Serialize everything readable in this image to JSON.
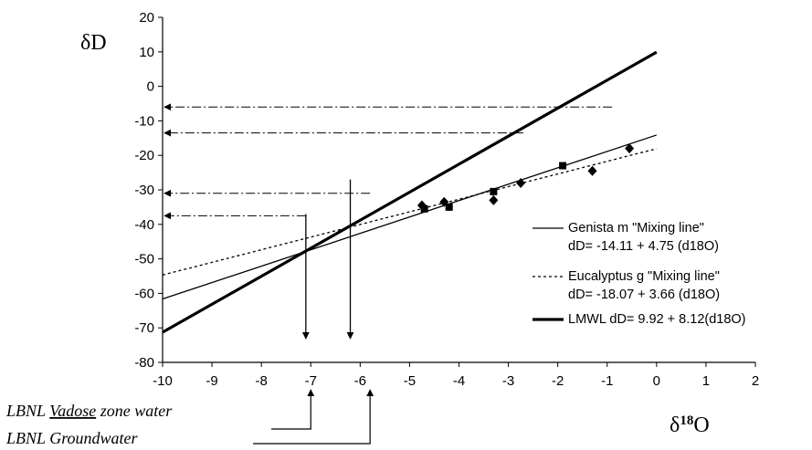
{
  "chart_data": {
    "type": "line",
    "title": "",
    "ylabel": "δD",
    "xlabel_main": "δ",
    "xlabel_sup": "18",
    "xlabel_tail": "O",
    "xlim": [
      -10,
      2
    ],
    "ylim": [
      -80,
      20
    ],
    "xticks": [
      -10,
      -9,
      -8,
      -7,
      -6,
      -5,
      -4,
      -3,
      -2,
      -1,
      0,
      1,
      2
    ],
    "yticks": [
      20,
      10,
      0,
      -10,
      -20,
      -30,
      -40,
      -50,
      -60,
      -70,
      -80
    ],
    "grid": false,
    "legend_position": "right",
    "series": [
      {
        "name": "Genista m \"Mixing line\"",
        "equation": "dD= -14.11 + 4.75 (d18O)",
        "style": "thin-solid",
        "line": {
          "intercept": -14.11,
          "slope": 4.75,
          "x": [
            -10,
            0
          ]
        },
        "marker": "square",
        "points": [
          {
            "x": -4.7,
            "y": -35.5
          },
          {
            "x": -4.2,
            "y": -35.0
          },
          {
            "x": -3.3,
            "y": -30.5
          },
          {
            "x": -1.9,
            "y": -23.0
          }
        ]
      },
      {
        "name": "Eucalyptus g \"Mixing line\"",
        "equation": "dD= -18.07 + 3.66 (d18O)",
        "style": "dotted",
        "line": {
          "intercept": -18.07,
          "slope": 3.66,
          "x": [
            -10,
            0
          ]
        },
        "marker": "diamond",
        "points": [
          {
            "x": -4.75,
            "y": -34.5
          },
          {
            "x": -4.3,
            "y": -33.5
          },
          {
            "x": -3.3,
            "y": -33.0
          },
          {
            "x": -2.75,
            "y": -28.0
          },
          {
            "x": -1.3,
            "y": -24.5
          },
          {
            "x": -0.55,
            "y": -18.0
          }
        ]
      },
      {
        "name": "LMWL dD= 9.92 + 8.12(d18O)",
        "equation": "",
        "style": "thick-solid",
        "line": {
          "intercept": 9.92,
          "slope": 8.12,
          "x": [
            -10,
            0
          ]
        },
        "marker": null,
        "points": []
      }
    ],
    "horizontal_arrows": [
      {
        "y": -6.0,
        "x_from": -0.9
      },
      {
        "y": -13.5,
        "x_from": -2.7
      },
      {
        "y": -31.0,
        "x_from": -5.8
      },
      {
        "y": -37.5,
        "x_from": -7.1
      }
    ],
    "vertical_arrows": [
      {
        "x": -7.1,
        "y_from": -37.0
      },
      {
        "x": -6.2,
        "y_from": -27.0
      }
    ],
    "annotations": [
      {
        "id": "vadose",
        "text_prefix": "LBNL ",
        "text_underlined": "Vadose",
        "text_suffix": " zone water",
        "target_x": -7.0
      },
      {
        "id": "groundwater",
        "text": "LBNL Groundwater",
        "target_x": -5.8
      }
    ]
  }
}
